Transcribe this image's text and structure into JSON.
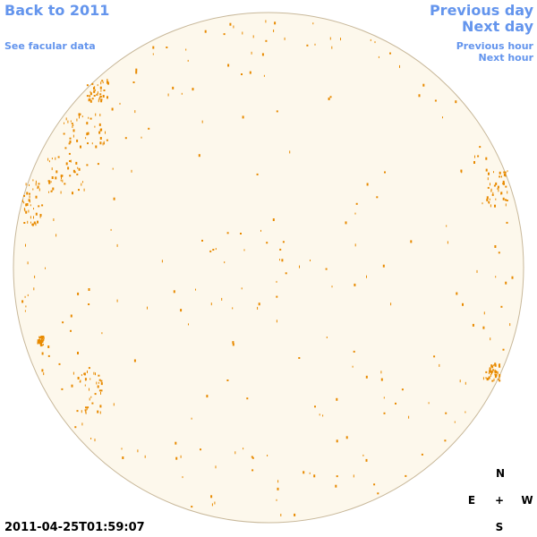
{
  "links": {
    "back": "Back to 2011",
    "facular": "See facular data",
    "previous_day": "Previous day",
    "next_day": "Next day",
    "previous_hour": "Previous hour",
    "next_hour": "Next hour"
  },
  "timestamp": "2011-04-25T01:59:07",
  "compass": {
    "north": "N",
    "east": "E",
    "center": "+",
    "west": "W",
    "south": "S"
  }
}
